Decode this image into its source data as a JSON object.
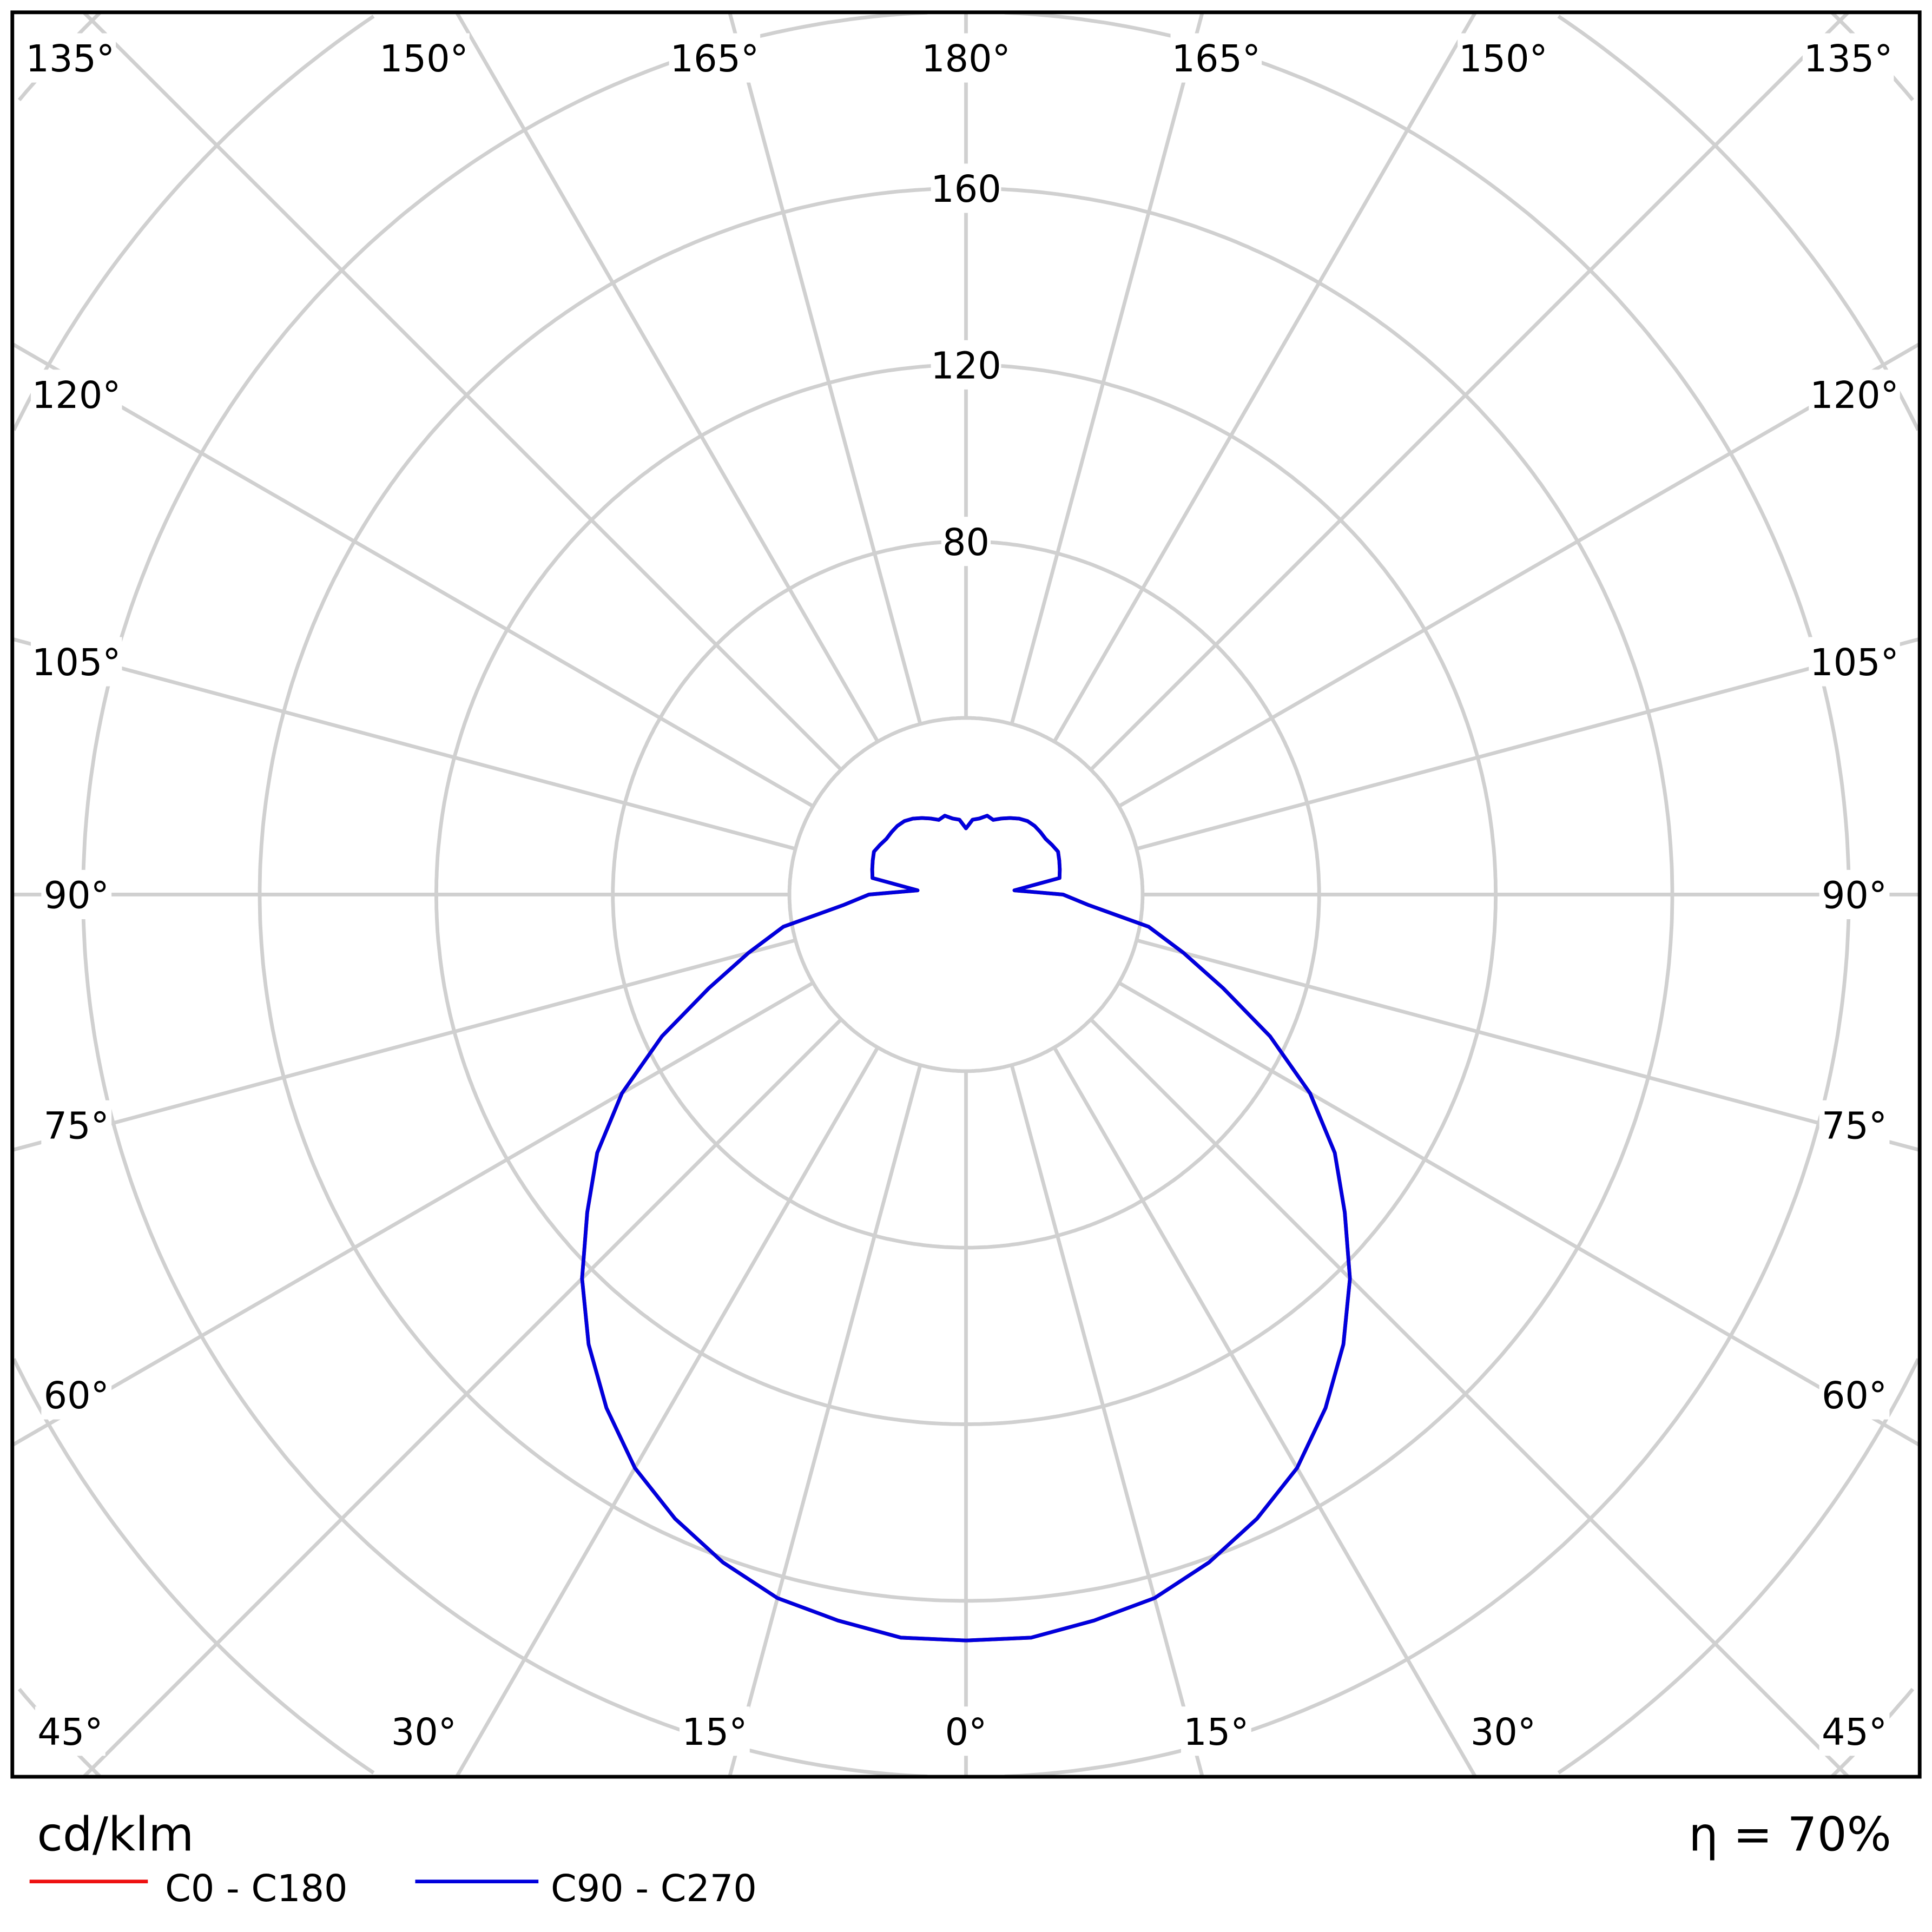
{
  "chart_data": {
    "type": "polar",
    "unit_label": "cd/klm",
    "efficiency_label": "η = 70%",
    "radial_ticks": [
      80,
      120,
      160
    ],
    "radial_rings": [
      40,
      80,
      120,
      160,
      200,
      240,
      280
    ],
    "angle_step_deg": 15,
    "angle_labels": {
      "top": [
        "135°",
        "150°",
        "165°",
        "180°",
        "165°",
        "150°",
        "135°"
      ],
      "left": [
        "120°",
        "105°",
        "90°",
        "75°",
        "60°"
      ],
      "right": [
        "120°",
        "105°",
        "90°",
        "75°",
        "60°"
      ],
      "bottom": [
        "45°",
        "30°",
        "15°",
        "0°",
        "15°",
        "30°",
        "45°"
      ]
    },
    "gamma_deg": [
      0,
      5,
      10,
      15,
      20,
      25,
      30,
      35,
      40,
      45,
      50,
      55,
      60,
      65,
      70,
      75,
      80,
      85,
      90,
      95,
      100,
      105,
      110,
      115,
      120,
      125,
      130,
      135,
      140,
      145,
      150,
      155,
      160,
      165,
      170,
      175,
      180
    ],
    "series": [
      {
        "name": "C0 - C180",
        "color": "#ee1111",
        "values": [
          169,
          169,
          167,
          165,
          161,
          156,
          150,
          142,
          133,
          123,
          112,
          102,
          90,
          76,
          62,
          51,
          42,
          28,
          22,
          11,
          21.5,
          22,
          22.5,
          23,
          22.5,
          22,
          22,
          22,
          21.7,
          21,
          20,
          19,
          18,
          18.5,
          17.5,
          17,
          15
        ]
      },
      {
        "name": "C90 - C270",
        "color": "#0000dd",
        "values": [
          169,
          169,
          167,
          165,
          161,
          156,
          150,
          142,
          133,
          123,
          112,
          102,
          90,
          76,
          62,
          51,
          42,
          28,
          22,
          11,
          21.5,
          22,
          22.5,
          23,
          22.5,
          22,
          22,
          22,
          21.7,
          21,
          20,
          19,
          18,
          18.5,
          17.5,
          17,
          15
        ]
      }
    ]
  }
}
